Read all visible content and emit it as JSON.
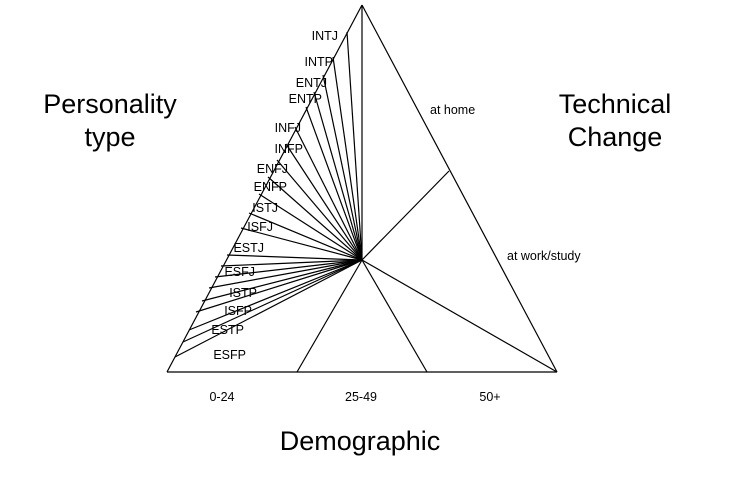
{
  "headings": {
    "personality": [
      "Personality",
      "type"
    ],
    "technical": [
      "Technical",
      "Change"
    ],
    "demographic": "Demographic"
  },
  "personality_types": [
    "INTJ",
    "INTP",
    "ENTJ",
    "ENTP",
    "INFJ",
    "INFP",
    "ENFJ",
    "ENFP",
    "ISTJ",
    "ISFJ",
    "ESTJ",
    "ESFJ",
    "ISTP",
    "ISFP",
    "ESTP",
    "ESFP"
  ],
  "technical_change": [
    "at home",
    "at work/study"
  ],
  "demographic_groups": [
    "0-24",
    "25-49",
    "50+"
  ]
}
